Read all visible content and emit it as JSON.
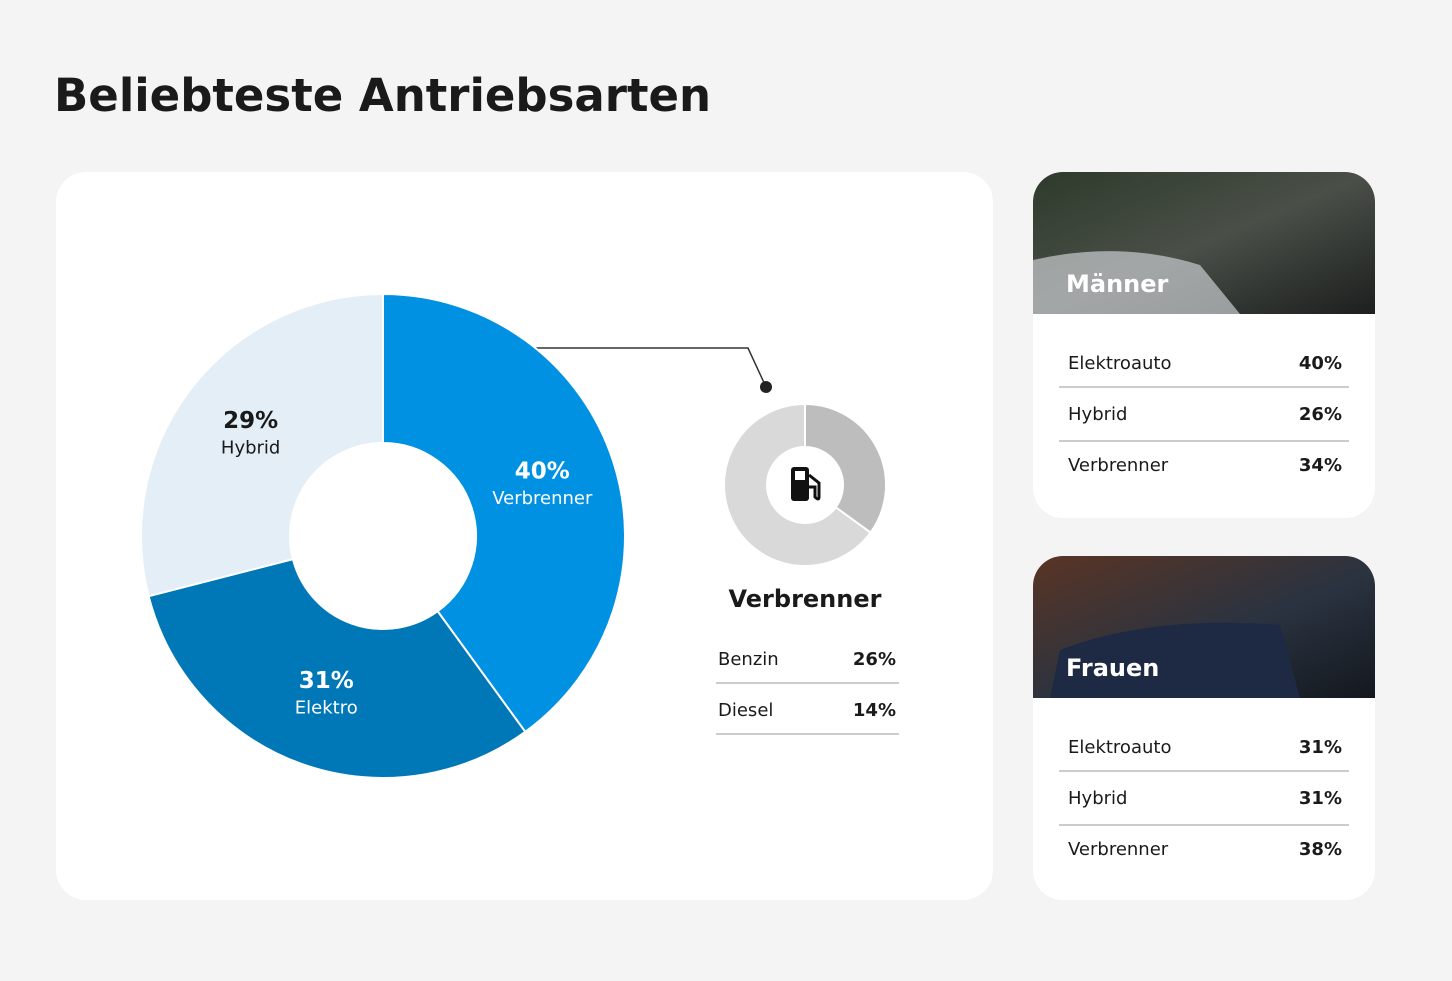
{
  "title": "Beliebteste Antriebsarten",
  "chart_data": [
    {
      "type": "pie",
      "categories": [
        "Verbrenner",
        "Elektro",
        "Hybrid"
      ],
      "values": [
        40,
        31,
        29
      ],
      "value_labels": [
        "40%",
        "31%",
        "29%"
      ],
      "colors": [
        "#0091e3",
        "#0077b6",
        "#e4eef6"
      ]
    },
    {
      "type": "pie",
      "title": "Verbrenner",
      "categories": [
        "Benzin",
        "Diesel"
      ],
      "values": [
        26,
        14
      ],
      "value_labels": [
        "26%",
        "14%"
      ],
      "colors": [
        "#d9d9d9",
        "#bdbdbd"
      ]
    }
  ],
  "panels": [
    {
      "title": "Männer",
      "rows": [
        [
          "Elektroauto",
          "40%"
        ],
        [
          "Hybrid",
          "26%"
        ],
        [
          "Verbrenner",
          "34%"
        ]
      ]
    },
    {
      "title": "Frauen",
      "rows": [
        [
          "Elektroauto",
          "31%"
        ],
        [
          "Hybrid",
          "31%"
        ],
        [
          "Verbrenner",
          "38%"
        ]
      ]
    }
  ]
}
